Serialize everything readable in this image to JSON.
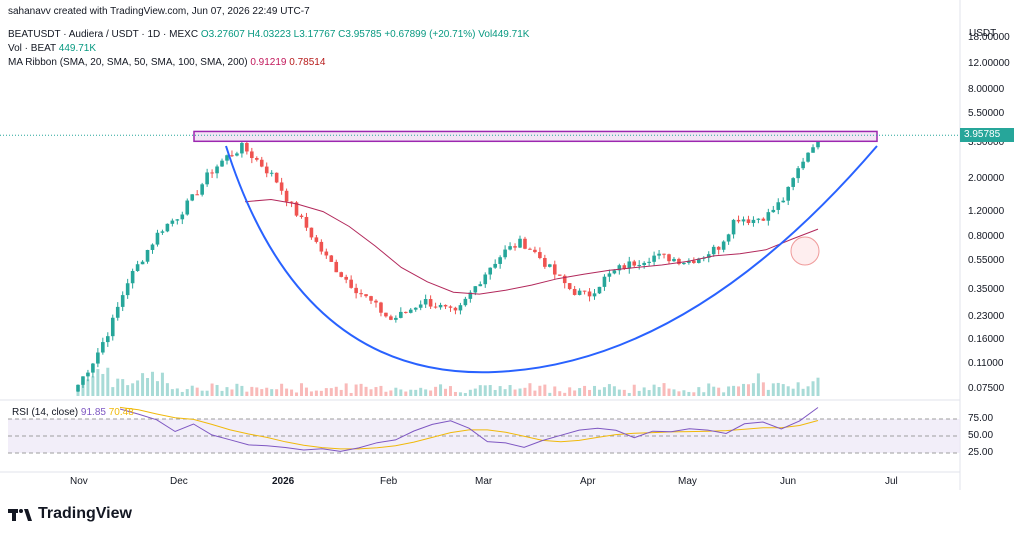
{
  "header": {
    "created_line": "sahanavv created with TradingView.com, Jun 07, 2026 22:49 UTC-7"
  },
  "legend": {
    "symbol_line": "BEATUSDT · Audiera / USDT · 1D · MEXC",
    "ohlc": "O3.27607  H4.03223  L3.17767  C3.95785  +0.67899 (+20.71%)  Vol449.71K",
    "vol_label": "Vol · BEAT",
    "vol_value": "449.71K",
    "ma_label": "MA Ribbon (SMA, 20, SMA, 50, SMA, 100, SMA, 200)",
    "ma_value_1": "0.91219",
    "ma_value_2": "0.78514"
  },
  "rsi": {
    "label": "RSI (14, close)",
    "value_1": "91.85",
    "value_2": "70.48"
  },
  "price_scale": {
    "currency": "USDT",
    "last_price": "3.95785"
  },
  "branding": {
    "logo_text": "TradingView"
  },
  "colors": {
    "up": "#26a69a",
    "down": "#ef5350",
    "ma": "#b2285b",
    "curve": "#2962ff",
    "resistance": "#9c27b0",
    "rsi_line": "#7e57c2",
    "rsi_ma": "#f0b90b"
  },
  "chart_data": {
    "type": "candlestick",
    "y_scale": "log",
    "y_ticks": [
      "18.00000",
      "12.00000",
      "8.00000",
      "5.50000",
      "3.50000",
      "2.00000",
      "1.20000",
      "0.80000",
      "0.55000",
      "0.35000",
      "0.23000",
      "0.16000",
      "0.11000",
      "0.07500"
    ],
    "x_ticks": [
      "Nov",
      "Dec",
      "2026",
      "Feb",
      "Mar",
      "Apr",
      "May",
      "Jun",
      "Jul"
    ],
    "rsi_ticks": [
      "75.00",
      "50.00",
      "25.00"
    ],
    "close_path": [
      0.08,
      0.12,
      0.2,
      0.4,
      0.6,
      0.9,
      1.1,
      1.5,
      2.2,
      2.8,
      3.3,
      2.6,
      2.0,
      1.3,
      0.9,
      0.6,
      0.45,
      0.35,
      0.28,
      0.22,
      0.25,
      0.3,
      0.27,
      0.24,
      0.35,
      0.5,
      0.65,
      0.75,
      0.6,
      0.45,
      0.35,
      0.32,
      0.42,
      0.5,
      0.55,
      0.6,
      0.58,
      0.55,
      0.6,
      0.7,
      1.1,
      1.05,
      1.15,
      1.5,
      2.6,
      3.95785
    ],
    "ma_path": [
      1.4,
      1.45,
      1.35,
      1.2,
      0.95,
      0.7,
      0.5,
      0.4,
      0.34,
      0.33,
      0.35,
      0.38,
      0.42,
      0.45,
      0.48,
      0.5,
      0.52,
      0.55,
      0.6,
      0.62,
      0.66,
      0.78,
      0.91219
    ],
    "resistance_level": [
      3.6,
      4.2
    ],
    "rsi_values": [
      92,
      85,
      70,
      60,
      65,
      55,
      45,
      40,
      35,
      32,
      30,
      28,
      30,
      35,
      40,
      45,
      55,
      65,
      70,
      60,
      45,
      38,
      35,
      40,
      50,
      55,
      60,
      55,
      50,
      55,
      60,
      62,
      58,
      55,
      65,
      70,
      62,
      75,
      91.85
    ]
  }
}
